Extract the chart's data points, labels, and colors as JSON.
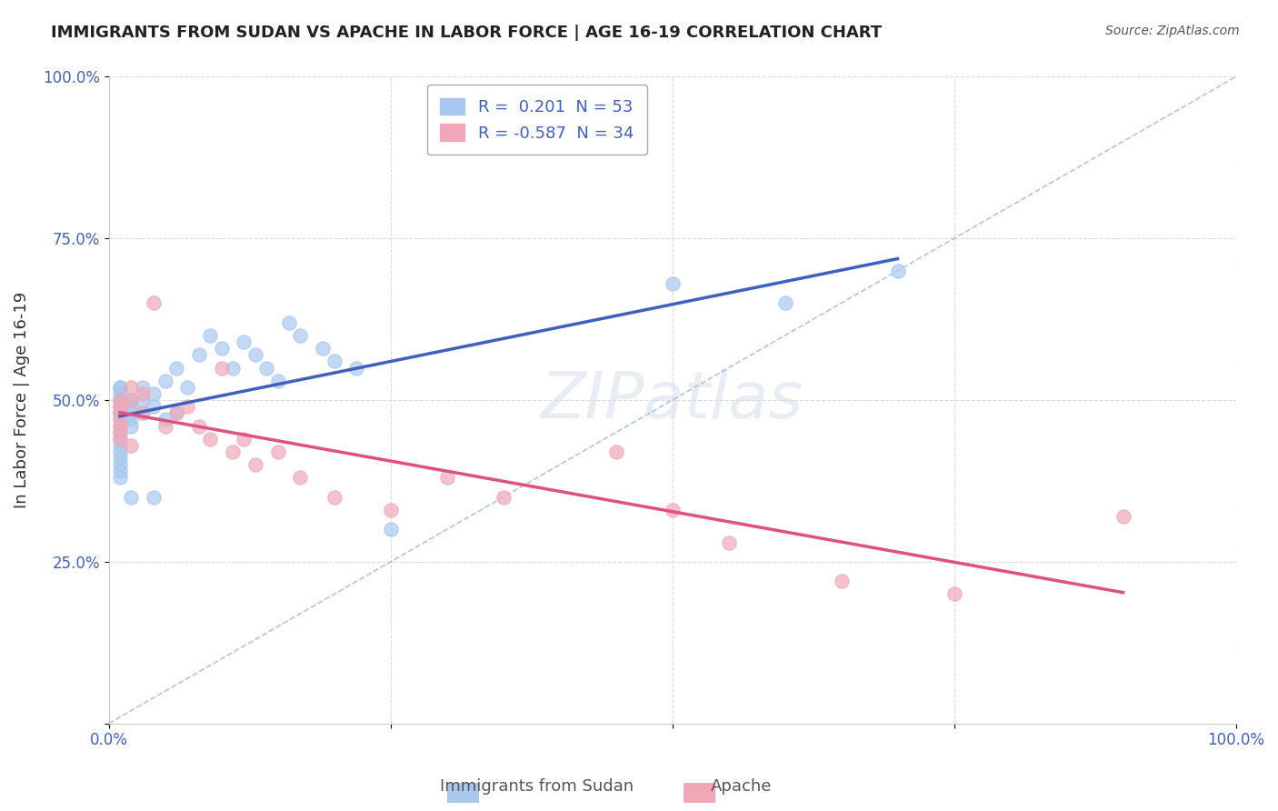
{
  "title": "IMMIGRANTS FROM SUDAN VS APACHE IN LABOR FORCE | AGE 16-19 CORRELATION CHART",
  "source": "Source: ZipAtlas.com",
  "xlabel": "",
  "ylabel": "In Labor Force | Age 16-19",
  "legend_label1": "Immigrants from Sudan",
  "legend_label2": "Apache",
  "r1": 0.201,
  "n1": 53,
  "r2": -0.587,
  "n2": 34,
  "color1": "#a8c8f0",
  "color2": "#f0a8b8",
  "line_color1": "#4060c0",
  "line_color2": "#e05080",
  "diag_color": "#a0b8d8",
  "xlim": [
    0.0,
    1.0
  ],
  "ylim": [
    0.0,
    1.0
  ],
  "x_ticks": [
    0.0,
    0.25,
    0.5,
    0.75,
    1.0
  ],
  "x_tick_labels": [
    "0.0%",
    "",
    "",
    "",
    "100.0%"
  ],
  "y_ticks": [
    0.0,
    0.25,
    0.5,
    0.75,
    1.0
  ],
  "y_tick_labels": [
    "",
    "25.0%",
    "50.0%",
    "75.0%",
    "100.0%"
  ],
  "sudan_x": [
    0.01,
    0.01,
    0.01,
    0.01,
    0.01,
    0.01,
    0.01,
    0.01,
    0.01,
    0.01,
    0.01,
    0.01,
    0.01,
    0.01,
    0.01,
    0.01,
    0.01,
    0.01,
    0.01,
    0.02,
    0.02,
    0.02,
    0.02,
    0.02,
    0.02,
    0.03,
    0.03,
    0.03,
    0.04,
    0.04,
    0.04,
    0.05,
    0.05,
    0.06,
    0.06,
    0.07,
    0.08,
    0.09,
    0.1,
    0.11,
    0.12,
    0.13,
    0.14,
    0.15,
    0.16,
    0.17,
    0.19,
    0.2,
    0.22,
    0.25,
    0.5,
    0.6,
    0.7
  ],
  "sudan_y": [
    0.48,
    0.48,
    0.48,
    0.5,
    0.51,
    0.52,
    0.52,
    0.5,
    0.49,
    0.47,
    0.46,
    0.45,
    0.44,
    0.43,
    0.42,
    0.41,
    0.4,
    0.39,
    0.38,
    0.5,
    0.49,
    0.48,
    0.47,
    0.46,
    0.35,
    0.52,
    0.5,
    0.48,
    0.51,
    0.49,
    0.35,
    0.53,
    0.47,
    0.55,
    0.48,
    0.52,
    0.57,
    0.6,
    0.58,
    0.55,
    0.59,
    0.57,
    0.55,
    0.53,
    0.62,
    0.6,
    0.58,
    0.56,
    0.55,
    0.3,
    0.68,
    0.65,
    0.7
  ],
  "apache_x": [
    0.01,
    0.01,
    0.01,
    0.01,
    0.01,
    0.01,
    0.01,
    0.02,
    0.02,
    0.02,
    0.03,
    0.03,
    0.04,
    0.05,
    0.06,
    0.07,
    0.08,
    0.09,
    0.1,
    0.11,
    0.12,
    0.13,
    0.15,
    0.17,
    0.2,
    0.25,
    0.3,
    0.35,
    0.45,
    0.5,
    0.55,
    0.65,
    0.75,
    0.9
  ],
  "apache_y": [
    0.5,
    0.49,
    0.48,
    0.47,
    0.46,
    0.45,
    0.44,
    0.52,
    0.5,
    0.43,
    0.51,
    0.48,
    0.65,
    0.46,
    0.48,
    0.49,
    0.46,
    0.44,
    0.55,
    0.42,
    0.44,
    0.4,
    0.42,
    0.38,
    0.35,
    0.33,
    0.38,
    0.35,
    0.42,
    0.33,
    0.28,
    0.22,
    0.2,
    0.32
  ],
  "watermark": "ZIPatlas",
  "background_color": "#ffffff",
  "grid_color": "#cccccc"
}
